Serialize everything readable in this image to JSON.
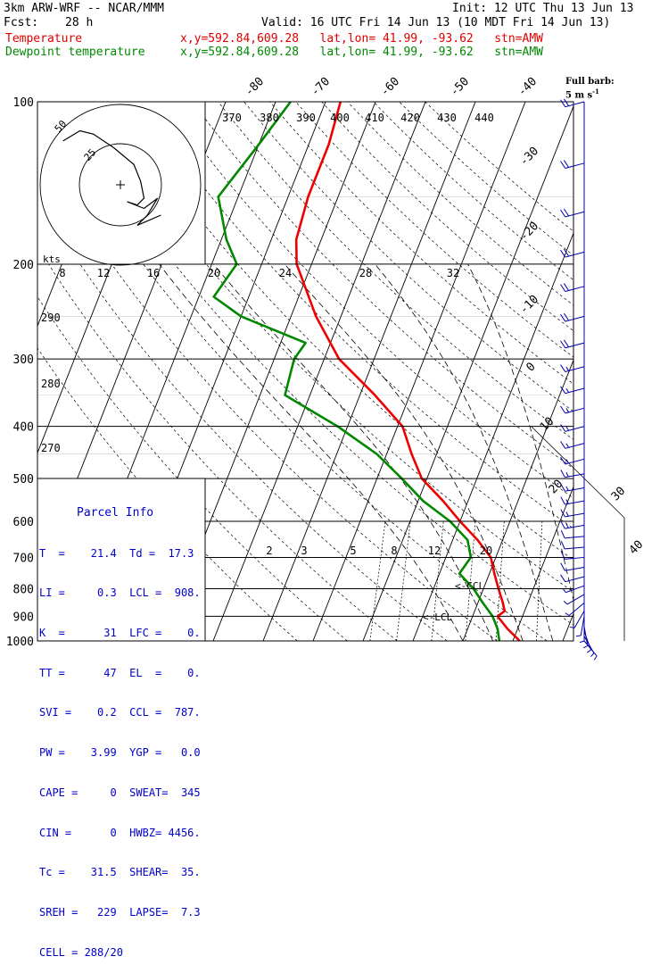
{
  "header": {
    "model": "3km ARW-WRF -- NCAR/MMM",
    "init": "Init: 12 UTC Thu 13 Jun 13",
    "fcst_label": "Fcst:",
    "fcst_value": "28 h",
    "valid": "Valid: 16 UTC Fri 14 Jun 13 (10 MDT Fri 14 Jun 13)",
    "temp_label": "Temperature",
    "temp_info": "x,y=592.84,609.28   lat,lon= 41.99, -93.62   stn=AMW",
    "dew_label": "Dewpoint temperature",
    "dew_info": "x,y=592.84,609.28   lat,lon= 41.99, -93.62   stn=AMW",
    "barb_title_1": "Full barb:",
    "barb_title_2": "5 m s",
    "barb_title_sup": "-1"
  },
  "parcel_info": {
    "title": "Parcel Info",
    "rows": [
      "T  =    21.4  Td =  17.3",
      "LI =     0.3  LCL =  908.",
      "K  =      31  LFC =    0.",
      "TT =      47  EL  =    0.",
      "SVI =    0.2  CCL =  787.",
      "PW =    3.99  YGP =   0.0",
      "CAPE =     0  SWEAT=  345",
      "CIN =      0  HWBZ= 4456.",
      "Tc =    31.5  SHEAR=  35.",
      "SREH =   229  LAPSE=  7.3",
      "CELL = 288/20"
    ]
  },
  "chart_data": {
    "type": "skew-t",
    "pressure_axis_labels": [
      "100",
      "200",
      "300",
      "400",
      "500",
      "600",
      "700",
      "800",
      "900",
      "1000"
    ],
    "pressure_levels": [
      100,
      200,
      300,
      400,
      500,
      600,
      700,
      800,
      900,
      1000
    ],
    "temperature_ticks_top": [
      "-80",
      "-70",
      "-60",
      "-50",
      "-40"
    ],
    "temperature_ticks_right": [
      "-30",
      "-20",
      "-10",
      "0",
      "10",
      "20",
      "30",
      "40"
    ],
    "theta_labels_top": [
      "370",
      "380",
      "390",
      "400",
      "410",
      "420",
      "430",
      "440"
    ],
    "theta_labels_left": [
      "290",
      "280",
      "270"
    ],
    "mixing_ratio_labels": [
      "2",
      "3",
      "5",
      "8",
      "12",
      "20"
    ],
    "hodograph": {
      "units": "kts",
      "ring_labels": [
        "50",
        "25"
      ],
      "speed_scale": [
        "8",
        "12",
        "16",
        "20",
        "24",
        "28",
        "32"
      ]
    },
    "lcl_labels": [
      "<-CCL",
      "<-LCL"
    ],
    "series": [
      {
        "name": "Temperature",
        "color": "#ee0000",
        "points": [
          [
            100,
            -57
          ],
          [
            120,
            -56
          ],
          [
            150,
            -56
          ],
          [
            180,
            -55
          ],
          [
            200,
            -53
          ],
          [
            250,
            -45
          ],
          [
            300,
            -37
          ],
          [
            350,
            -27
          ],
          [
            400,
            -19
          ],
          [
            450,
            -15
          ],
          [
            500,
            -11
          ],
          [
            550,
            -5
          ],
          [
            600,
            0
          ],
          [
            650,
            5
          ],
          [
            700,
            9
          ],
          [
            750,
            11
          ],
          [
            800,
            13
          ],
          [
            850,
            15
          ],
          [
            880,
            16
          ],
          [
            900,
            15
          ],
          [
            950,
            18
          ],
          [
            1000,
            21.4
          ]
        ]
      },
      {
        "name": "Dewpoint temperature",
        "color": "#008800",
        "points": [
          [
            100,
            -67
          ],
          [
            120,
            -70
          ],
          [
            150,
            -74
          ],
          [
            180,
            -69
          ],
          [
            200,
            -65
          ],
          [
            230,
            -67
          ],
          [
            250,
            -60
          ],
          [
            280,
            -45
          ],
          [
            300,
            -46
          ],
          [
            350,
            -45
          ],
          [
            400,
            -32
          ],
          [
            450,
            -22
          ],
          [
            500,
            -15
          ],
          [
            550,
            -9
          ],
          [
            600,
            -2
          ],
          [
            650,
            3
          ],
          [
            700,
            5
          ],
          [
            750,
            4
          ],
          [
            800,
            8
          ],
          [
            850,
            11
          ],
          [
            900,
            14
          ],
          [
            950,
            16
          ],
          [
            1000,
            17.3
          ]
        ]
      }
    ],
    "hodograph_trace": [
      [
        -17,
        13
      ],
      [
        -12,
        16
      ],
      [
        -8,
        15
      ],
      [
        -2,
        11
      ],
      [
        4,
        6
      ],
      [
        6,
        1
      ],
      [
        7,
        -4
      ],
      [
        5,
        -6
      ],
      [
        2,
        -5
      ],
      [
        7,
        -7
      ],
      [
        11,
        -4
      ],
      [
        8,
        -9
      ],
      [
        5,
        -12
      ],
      [
        12,
        -9
      ]
    ],
    "wind_barbs": [
      {
        "p": 100,
        "dir": 255,
        "spd": 22
      },
      {
        "p": 130,
        "dir": 255,
        "spd": 22
      },
      {
        "p": 160,
        "dir": 255,
        "spd": 22
      },
      {
        "p": 190,
        "dir": 255,
        "spd": 22
      },
      {
        "p": 220,
        "dir": 255,
        "spd": 20
      },
      {
        "p": 250,
        "dir": 255,
        "spd": 20
      },
      {
        "p": 280,
        "dir": 255,
        "spd": 18
      },
      {
        "p": 310,
        "dir": 255,
        "spd": 16
      },
      {
        "p": 340,
        "dir": 255,
        "spd": 16
      },
      {
        "p": 370,
        "dir": 255,
        "spd": 16
      },
      {
        "p": 400,
        "dir": 255,
        "spd": 16
      },
      {
        "p": 430,
        "dir": 255,
        "spd": 16
      },
      {
        "p": 460,
        "dir": 255,
        "spd": 16
      },
      {
        "p": 490,
        "dir": 260,
        "spd": 15
      },
      {
        "p": 520,
        "dir": 260,
        "spd": 15
      },
      {
        "p": 550,
        "dir": 260,
        "spd": 15
      },
      {
        "p": 580,
        "dir": 260,
        "spd": 14
      },
      {
        "p": 610,
        "dir": 260,
        "spd": 13
      },
      {
        "p": 640,
        "dir": 265,
        "spd": 12
      },
      {
        "p": 670,
        "dir": 265,
        "spd": 11
      },
      {
        "p": 700,
        "dir": 265,
        "spd": 10
      },
      {
        "p": 730,
        "dir": 260,
        "spd": 9
      },
      {
        "p": 760,
        "dir": 255,
        "spd": 8
      },
      {
        "p": 790,
        "dir": 250,
        "spd": 7
      },
      {
        "p": 820,
        "dir": 240,
        "spd": 6
      },
      {
        "p": 850,
        "dir": 230,
        "spd": 5
      },
      {
        "p": 880,
        "dir": 210,
        "spd": 4
      },
      {
        "p": 900,
        "dir": 190,
        "spd": 4
      },
      {
        "p": 920,
        "dir": 180,
        "spd": 4
      },
      {
        "p": 940,
        "dir": 170,
        "spd": 4
      },
      {
        "p": 960,
        "dir": 160,
        "spd": 4
      },
      {
        "p": 980,
        "dir": 150,
        "spd": 5
      },
      {
        "p": 1000,
        "dir": 140,
        "spd": 5
      }
    ]
  }
}
